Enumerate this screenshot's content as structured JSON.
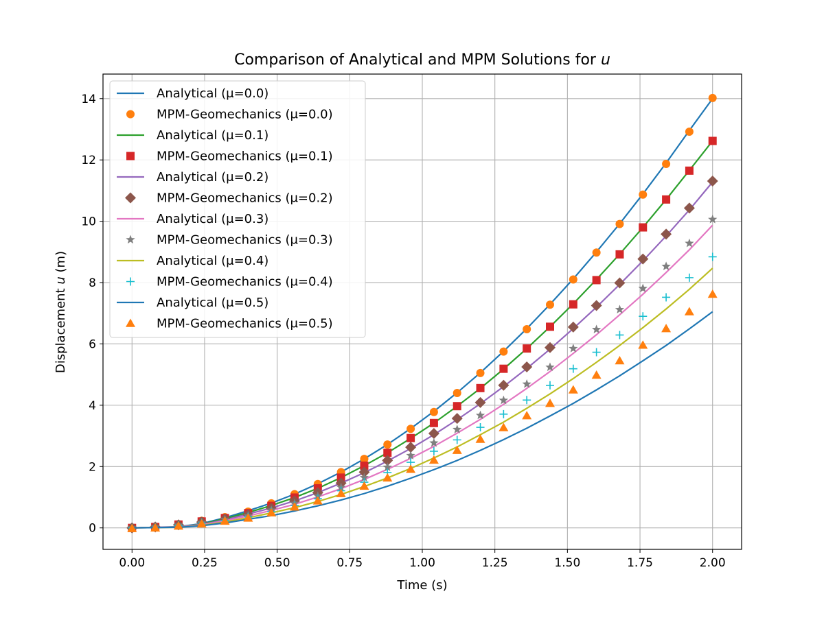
{
  "chart_data": {
    "type": "line",
    "title": "Comparison of Analytical and MPM Solutions for",
    "title_var": "u",
    "xlabel": "Time (s)",
    "ylabel_prefix": "Displacement",
    "ylabel_var": "u",
    "ylabel_suffix": "(m)",
    "xlim": [
      -0.1,
      2.1
    ],
    "ylim": [
      -0.7,
      14.8
    ],
    "xticks": [
      0.0,
      0.25,
      0.5,
      0.75,
      1.0,
      1.25,
      1.5,
      1.75,
      2.0
    ],
    "xtick_labels": [
      "0.00",
      "0.25",
      "0.50",
      "0.75",
      "1.00",
      "1.25",
      "1.50",
      "1.75",
      "2.00"
    ],
    "yticks": [
      0,
      2,
      4,
      6,
      8,
      10,
      12,
      14
    ],
    "ytick_labels": [
      "0",
      "2",
      "4",
      "6",
      "8",
      "10",
      "12",
      "14"
    ],
    "grid": true,
    "legend_position": "top-left",
    "t": [
      0.0,
      0.08,
      0.16,
      0.24,
      0.32,
      0.4,
      0.48,
      0.56,
      0.64,
      0.72,
      0.8,
      0.88,
      0.96,
      1.04,
      1.12,
      1.2,
      1.28,
      1.36,
      1.44,
      1.52,
      1.6,
      1.68,
      1.76,
      1.84,
      1.92,
      2.0
    ],
    "series": [
      {
        "name": "Analytical (μ=0.0)",
        "kind": "line",
        "color": "#1f77b4",
        "values": [
          0.0,
          0.02,
          0.04,
          0.14,
          0.33,
          0.56,
          0.81,
          1.1,
          1.44,
          1.82,
          2.25,
          2.72,
          3.24,
          3.8,
          4.41,
          5.06,
          5.76,
          6.5,
          7.29,
          8.12,
          9.0,
          9.92,
          10.89,
          11.9,
          12.96,
          14.0
        ]
      },
      {
        "name": "MPM-Geomechanics (μ=0.0)",
        "kind": "marker",
        "marker": "circle",
        "color": "#ff7f0e",
        "values": [
          0.0,
          0.03,
          0.12,
          0.23,
          0.35,
          0.53,
          0.8,
          1.1,
          1.43,
          1.82,
          2.25,
          2.72,
          3.23,
          3.78,
          4.4,
          5.05,
          5.75,
          6.48,
          7.28,
          8.1,
          8.98,
          9.91,
          10.87,
          11.87,
          12.92,
          14.02
        ]
      },
      {
        "name": "Analytical (μ=0.1)",
        "kind": "line",
        "color": "#2ca02c",
        "values": [
          0.0,
          0.02,
          0.03,
          0.12,
          0.3,
          0.5,
          0.73,
          0.99,
          1.29,
          1.64,
          2.03,
          2.45,
          2.92,
          3.42,
          3.97,
          4.55,
          5.18,
          5.85,
          6.56,
          7.31,
          8.1,
          8.93,
          9.8,
          10.71,
          11.66,
          12.62
        ]
      },
      {
        "name": "MPM-Geomechanics (μ=0.1)",
        "kind": "marker",
        "marker": "square",
        "color": "#d62728",
        "values": [
          0.0,
          0.03,
          0.11,
          0.21,
          0.32,
          0.48,
          0.72,
          0.99,
          1.29,
          1.64,
          2.03,
          2.45,
          2.93,
          3.42,
          3.97,
          4.56,
          5.19,
          5.85,
          6.56,
          7.29,
          8.08,
          8.92,
          9.8,
          10.71,
          11.65,
          12.62
        ]
      },
      {
        "name": "Analytical (μ=0.2)",
        "kind": "line",
        "color": "#9467bd",
        "values": [
          0.0,
          0.02,
          0.03,
          0.11,
          0.26,
          0.45,
          0.65,
          0.88,
          1.15,
          1.46,
          1.8,
          2.18,
          2.59,
          3.04,
          3.53,
          4.05,
          4.61,
          5.2,
          5.83,
          6.5,
          7.2,
          7.94,
          8.71,
          9.52,
          10.37,
          11.28
        ]
      },
      {
        "name": "MPM-Geomechanics (μ=0.2)",
        "kind": "marker",
        "marker": "diamond",
        "color": "#8c564b",
        "values": [
          0.0,
          0.03,
          0.1,
          0.19,
          0.29,
          0.43,
          0.64,
          0.88,
          1.15,
          1.46,
          1.82,
          2.2,
          2.63,
          3.08,
          3.57,
          4.09,
          4.65,
          5.25,
          5.88,
          6.55,
          7.25,
          7.99,
          8.77,
          9.58,
          10.43,
          11.31
        ]
      },
      {
        "name": "Analytical (μ=0.3)",
        "kind": "line",
        "color": "#e377c2",
        "values": [
          0.0,
          0.01,
          0.03,
          0.1,
          0.23,
          0.39,
          0.57,
          0.77,
          1.01,
          1.28,
          1.58,
          1.91,
          2.27,
          2.66,
          3.09,
          3.54,
          4.03,
          4.55,
          5.1,
          5.69,
          6.3,
          6.95,
          7.62,
          8.33,
          9.07,
          9.87
        ]
      },
      {
        "name": "MPM-Geomechanics (μ=0.3)",
        "kind": "marker",
        "marker": "star",
        "color": "#7f7f7f",
        "values": [
          0.0,
          0.03,
          0.09,
          0.17,
          0.27,
          0.39,
          0.58,
          0.8,
          1.04,
          1.32,
          1.64,
          1.98,
          2.36,
          2.77,
          3.21,
          3.67,
          4.16,
          4.69,
          5.24,
          5.85,
          6.47,
          7.12,
          7.81,
          8.53,
          9.28,
          10.06
        ]
      },
      {
        "name": "Analytical (μ=0.4)",
        "kind": "line",
        "color": "#bcbd22",
        "values": [
          0.0,
          0.01,
          0.02,
          0.08,
          0.19,
          0.33,
          0.49,
          0.66,
          0.86,
          1.09,
          1.35,
          1.63,
          1.94,
          2.28,
          2.64,
          3.04,
          3.45,
          3.9,
          4.37,
          4.87,
          5.4,
          5.95,
          6.53,
          7.14,
          7.78,
          8.47
        ]
      },
      {
        "name": "MPM-Geomechanics (μ=0.4)",
        "kind": "marker",
        "marker": "plus",
        "color": "#17becf",
        "values": [
          0.0,
          0.02,
          0.08,
          0.16,
          0.24,
          0.36,
          0.53,
          0.73,
          0.95,
          1.21,
          1.49,
          1.8,
          2.14,
          2.5,
          2.87,
          3.28,
          3.71,
          4.17,
          4.65,
          5.19,
          5.73,
          6.29,
          6.9,
          7.52,
          8.16,
          8.84
        ]
      },
      {
        "name": "Analytical (μ=0.5)",
        "kind": "line",
        "color": "#1f77b4",
        "values": [
          0.0,
          0.01,
          0.02,
          0.07,
          0.16,
          0.28,
          0.4,
          0.55,
          0.72,
          0.91,
          1.12,
          1.36,
          1.62,
          1.9,
          2.2,
          2.53,
          2.88,
          3.25,
          3.65,
          4.06,
          4.5,
          4.96,
          5.45,
          5.95,
          6.49,
          7.05
        ]
      },
      {
        "name": "MPM-Geomechanics (μ=0.5)",
        "kind": "marker",
        "marker": "triangle",
        "color": "#ff7f0e",
        "values": [
          -0.02,
          0.0,
          0.06,
          0.13,
          0.22,
          0.32,
          0.49,
          0.68,
          0.88,
          1.12,
          1.36,
          1.63,
          1.91,
          2.21,
          2.53,
          2.89,
          3.27,
          3.66,
          4.06,
          4.5,
          4.98,
          5.45,
          5.96,
          6.5,
          7.05,
          7.62
        ]
      }
    ]
  }
}
